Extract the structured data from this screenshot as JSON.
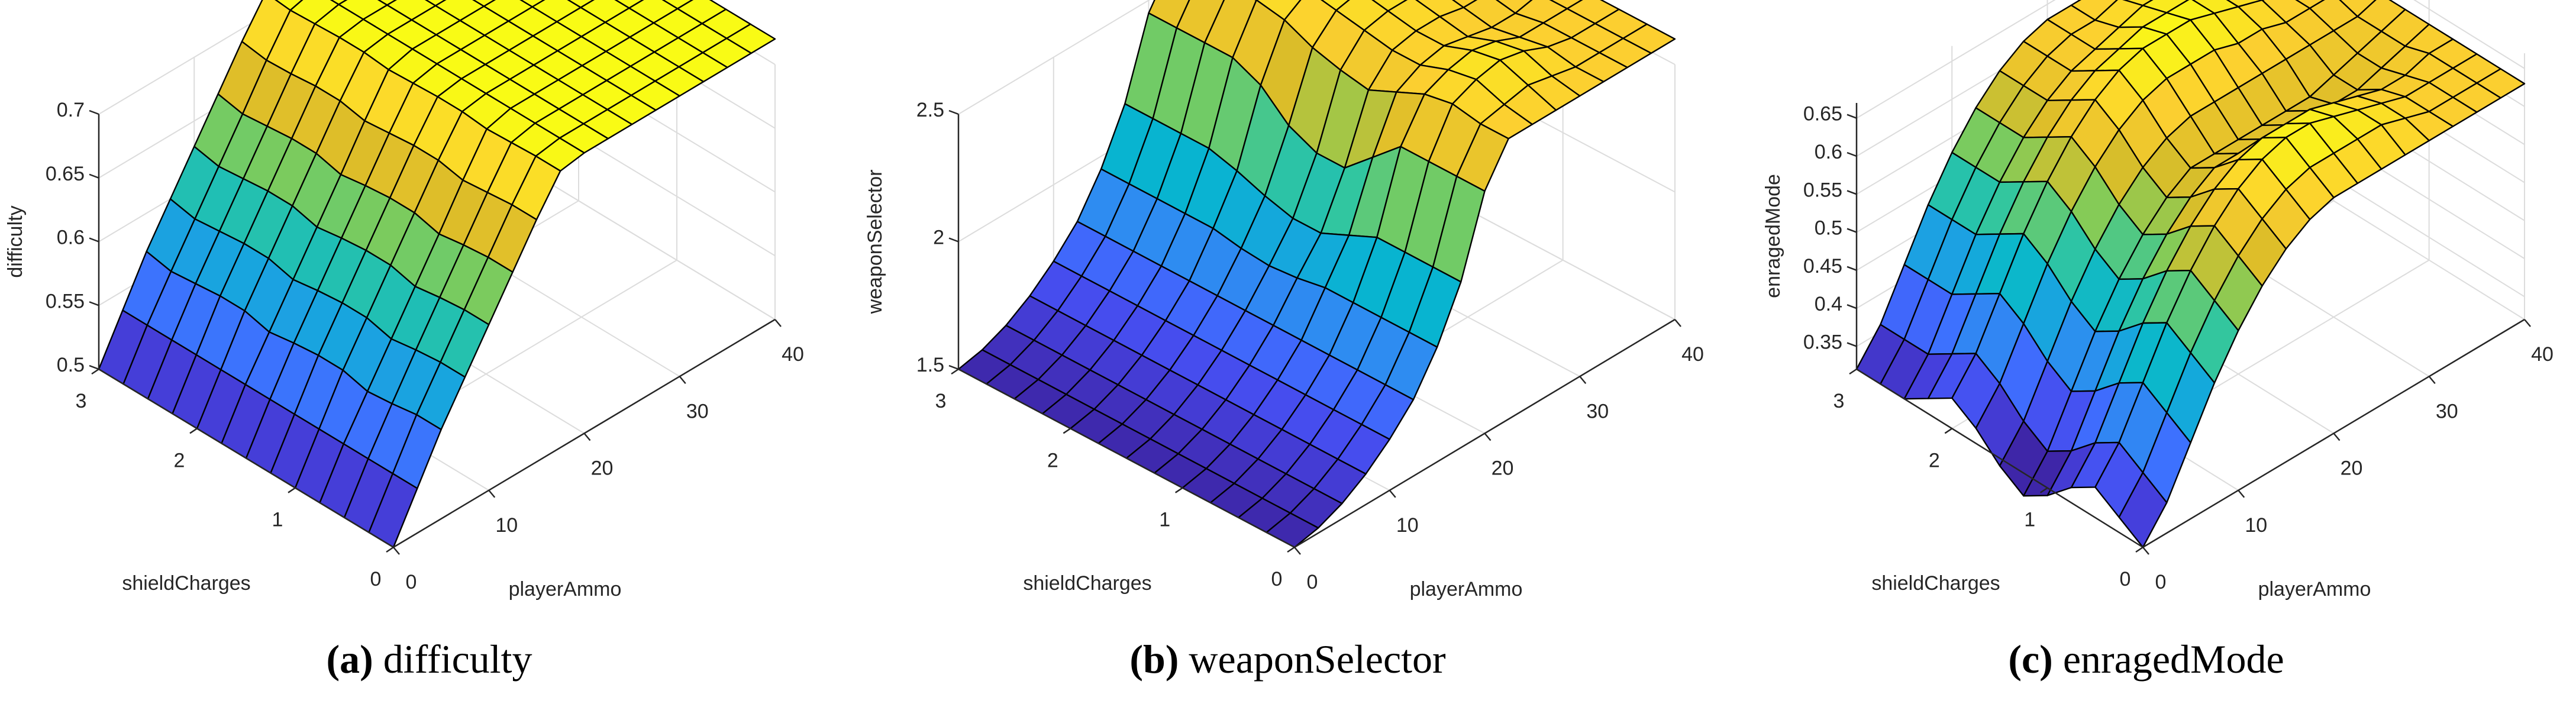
{
  "figure": {
    "panels": [
      {
        "id": "a",
        "letter": "(a)",
        "caption": "difficulty"
      },
      {
        "id": "b",
        "letter": "(b)",
        "caption": "weaponSelector"
      },
      {
        "id": "c",
        "letter": "(c)",
        "caption": "enragedMode"
      }
    ]
  },
  "chart_data": [
    {
      "type": "surface",
      "title": "difficulty",
      "caption": "(a) difficulty",
      "xlabel": "playerAmmo",
      "ylabel": "shieldCharges",
      "zlabel": "difficulty",
      "xlim": [
        0,
        40
      ],
      "ylim": [
        0,
        3
      ],
      "zlim": [
        0.5,
        0.7
      ],
      "xticks": [
        0,
        10,
        20,
        30,
        40
      ],
      "yticks": [
        0,
        1,
        2,
        3
      ],
      "zticks": [
        0.5,
        0.55,
        0.6,
        0.65,
        0.7
      ],
      "ztick_labels": [
        "0.5",
        "0.55",
        "0.6",
        "0.65",
        "0.7"
      ],
      "grid": true,
      "colormap": "parula",
      "x": [
        0,
        2.5,
        5,
        7.5,
        10,
        12.5,
        15,
        17.5,
        20,
        22.5,
        25,
        27.5,
        30,
        32.5,
        35,
        37.5,
        40
      ],
      "y": [
        0,
        0.25,
        0.5,
        0.75,
        1,
        1.25,
        1.5,
        1.75,
        2,
        2.25,
        2.5,
        2.75,
        3
      ],
      "z_description": "rows = shieldCharges (0..3), cols = playerAmmo (0..40)",
      "z": [
        [
          0.5,
          0.535,
          0.57,
          0.6,
          0.63,
          0.66,
          0.69,
          0.717,
          0.72,
          0.72,
          0.72,
          0.72,
          0.72,
          0.72,
          0.72,
          0.72,
          0.72
        ],
        [
          0.5,
          0.535,
          0.57,
          0.6,
          0.63,
          0.66,
          0.69,
          0.717,
          0.72,
          0.72,
          0.72,
          0.72,
          0.72,
          0.72,
          0.72,
          0.72,
          0.72
        ],
        [
          0.5,
          0.535,
          0.567,
          0.598,
          0.628,
          0.658,
          0.688,
          0.716,
          0.72,
          0.72,
          0.72,
          0.72,
          0.72,
          0.72,
          0.72,
          0.72,
          0.72
        ],
        [
          0.5,
          0.535,
          0.565,
          0.595,
          0.625,
          0.655,
          0.686,
          0.715,
          0.72,
          0.72,
          0.72,
          0.72,
          0.72,
          0.72,
          0.72,
          0.72,
          0.72
        ],
        [
          0.5,
          0.535,
          0.57,
          0.6,
          0.63,
          0.66,
          0.69,
          0.717,
          0.72,
          0.72,
          0.72,
          0.72,
          0.72,
          0.72,
          0.72,
          0.72,
          0.72
        ],
        [
          0.5,
          0.535,
          0.57,
          0.6,
          0.63,
          0.66,
          0.69,
          0.717,
          0.72,
          0.72,
          0.72,
          0.72,
          0.72,
          0.72,
          0.72,
          0.72,
          0.72
        ],
        [
          0.5,
          0.535,
          0.568,
          0.598,
          0.628,
          0.658,
          0.688,
          0.716,
          0.72,
          0.72,
          0.72,
          0.72,
          0.72,
          0.72,
          0.72,
          0.72,
          0.72
        ],
        [
          0.5,
          0.535,
          0.565,
          0.595,
          0.625,
          0.655,
          0.686,
          0.715,
          0.72,
          0.72,
          0.72,
          0.72,
          0.72,
          0.72,
          0.72,
          0.72,
          0.72
        ],
        [
          0.5,
          0.535,
          0.57,
          0.6,
          0.63,
          0.66,
          0.69,
          0.717,
          0.72,
          0.72,
          0.72,
          0.72,
          0.72,
          0.72,
          0.72,
          0.72,
          0.72
        ],
        [
          0.5,
          0.535,
          0.57,
          0.6,
          0.63,
          0.66,
          0.69,
          0.717,
          0.72,
          0.72,
          0.72,
          0.72,
          0.72,
          0.72,
          0.72,
          0.72,
          0.72
        ],
        [
          0.5,
          0.535,
          0.568,
          0.598,
          0.628,
          0.658,
          0.688,
          0.716,
          0.72,
          0.72,
          0.72,
          0.72,
          0.72,
          0.72,
          0.72,
          0.72,
          0.72
        ],
        [
          0.5,
          0.535,
          0.566,
          0.596,
          0.626,
          0.656,
          0.687,
          0.715,
          0.72,
          0.72,
          0.72,
          0.72,
          0.72,
          0.72,
          0.72,
          0.72,
          0.72
        ],
        [
          0.5,
          0.535,
          0.57,
          0.6,
          0.63,
          0.66,
          0.69,
          0.717,
          0.72,
          0.72,
          0.72,
          0.72,
          0.72,
          0.72,
          0.72,
          0.72,
          0.72
        ]
      ]
    },
    {
      "type": "surface",
      "title": "weaponSelector",
      "caption": "(b) weaponSelector",
      "xlabel": "playerAmmo",
      "ylabel": "shieldCharges",
      "zlabel": "weaponSelector",
      "xlim": [
        0,
        40
      ],
      "ylim": [
        0,
        3
      ],
      "zlim": [
        1.5,
        2.5
      ],
      "xticks": [
        0,
        10,
        20,
        30,
        40
      ],
      "yticks": [
        0,
        1,
        2,
        3
      ],
      "zticks": [
        1.5,
        2,
        2.5
      ],
      "ztick_labels": [
        "1.5",
        "2",
        "2.5"
      ],
      "grid": true,
      "colormap": "parula",
      "x": [
        0,
        2.5,
        5,
        7.5,
        10,
        12.5,
        15,
        17.5,
        20,
        22.5,
        25,
        27.5,
        30,
        32.5,
        35,
        37.5,
        40
      ],
      "y": [
        0,
        0.25,
        0.5,
        0.75,
        1,
        1.25,
        1.5,
        1.75,
        2,
        2.25,
        2.5,
        2.75,
        3
      ],
      "z_description": "rows = shieldCharges (0..3), cols = playerAmmo (0..40)",
      "z": [
        [
          1.5,
          1.52,
          1.56,
          1.62,
          1.7,
          1.8,
          1.95,
          2.15,
          2.45,
          2.6,
          2.6,
          2.6,
          2.6,
          2.6,
          2.6,
          2.6,
          2.6
        ],
        [
          1.5,
          1.52,
          1.56,
          1.62,
          1.7,
          1.8,
          1.95,
          2.15,
          2.45,
          2.6,
          2.62,
          2.64,
          2.62,
          2.6,
          2.6,
          2.6,
          2.6
        ],
        [
          1.5,
          1.52,
          1.56,
          1.62,
          1.7,
          1.8,
          1.95,
          2.15,
          2.45,
          2.62,
          2.66,
          2.68,
          2.66,
          2.62,
          2.6,
          2.6,
          2.6
        ],
        [
          1.5,
          1.52,
          1.56,
          1.62,
          1.7,
          1.8,
          1.95,
          2.15,
          2.45,
          2.6,
          2.64,
          2.66,
          2.64,
          2.6,
          2.6,
          2.6,
          2.6
        ],
        [
          1.5,
          1.52,
          1.56,
          1.62,
          1.7,
          1.8,
          1.95,
          2.1,
          2.35,
          2.55,
          2.6,
          2.62,
          2.6,
          2.58,
          2.58,
          2.6,
          2.6
        ],
        [
          1.5,
          1.52,
          1.56,
          1.62,
          1.7,
          1.8,
          1.93,
          2.05,
          2.25,
          2.5,
          2.6,
          2.62,
          2.62,
          2.6,
          2.6,
          2.6,
          2.6
        ],
        [
          1.5,
          1.52,
          1.56,
          1.62,
          1.7,
          1.8,
          1.92,
          2.05,
          2.25,
          2.52,
          2.62,
          2.64,
          2.64,
          2.62,
          2.6,
          2.6,
          2.6
        ],
        [
          1.5,
          1.52,
          1.56,
          1.62,
          1.7,
          1.8,
          1.93,
          2.08,
          2.3,
          2.55,
          2.64,
          2.66,
          2.66,
          2.64,
          2.62,
          2.6,
          2.6
        ],
        [
          1.5,
          1.52,
          1.56,
          1.62,
          1.7,
          1.8,
          1.95,
          2.12,
          2.4,
          2.6,
          2.66,
          2.68,
          2.7,
          2.68,
          2.66,
          2.64,
          2.62
        ],
        [
          1.5,
          1.52,
          1.56,
          1.62,
          1.7,
          1.8,
          1.95,
          2.15,
          2.45,
          2.62,
          2.68,
          2.72,
          2.74,
          2.74,
          2.72,
          2.7,
          2.68
        ],
        [
          1.5,
          1.52,
          1.56,
          1.62,
          1.7,
          1.8,
          1.95,
          2.15,
          2.45,
          2.6,
          2.66,
          2.7,
          2.72,
          2.74,
          2.74,
          2.72,
          2.7
        ],
        [
          1.5,
          1.52,
          1.56,
          1.62,
          1.7,
          1.8,
          1.95,
          2.15,
          2.45,
          2.6,
          2.62,
          2.64,
          2.64,
          2.64,
          2.64,
          2.64,
          2.62
        ],
        [
          1.5,
          1.52,
          1.56,
          1.62,
          1.7,
          1.8,
          1.95,
          2.15,
          2.45,
          2.6,
          2.6,
          2.6,
          2.6,
          2.6,
          2.6,
          2.6,
          2.6
        ]
      ]
    },
    {
      "type": "surface",
      "title": "enragedMode",
      "caption": "(c) enragedMode",
      "xlabel": "playerAmmo",
      "ylabel": "shieldCharges",
      "zlabel": "enragedMode",
      "xlim": [
        0,
        40
      ],
      "ylim": [
        0,
        3
      ],
      "zlim": [
        0.32,
        0.67
      ],
      "xticks": [
        0,
        10,
        20,
        30,
        40
      ],
      "yticks": [
        0,
        1,
        2,
        3
      ],
      "zticks": [
        0.35,
        0.4,
        0.45,
        0.5,
        0.55,
        0.6,
        0.65
      ],
      "ztick_labels": [
        "0.35",
        "0.4",
        "0.45",
        "0.5",
        "0.55",
        "0.6",
        "0.65"
      ],
      "grid": true,
      "colormap": "parula",
      "x": [
        0,
        2.5,
        5,
        7.5,
        10,
        12.5,
        15,
        17.5,
        20,
        22.5,
        25,
        27.5,
        30,
        32.5,
        35,
        37.5,
        40
      ],
      "y": [
        0,
        0.25,
        0.5,
        0.75,
        1,
        1.25,
        1.5,
        1.75,
        2,
        2.25,
        2.5,
        2.75,
        3
      ],
      "z_description": "rows = shieldCharges (0..3), cols = playerAmmo (0..40)",
      "z": [
        [
          0.32,
          0.36,
          0.42,
          0.48,
          0.53,
          0.57,
          0.6,
          0.62,
          0.63,
          0.63,
          0.63,
          0.63,
          0.63,
          0.63,
          0.63,
          0.63,
          0.63
        ],
        [
          0.34,
          0.38,
          0.44,
          0.5,
          0.55,
          0.59,
          0.62,
          0.64,
          0.65,
          0.65,
          0.65,
          0.65,
          0.64,
          0.63,
          0.63,
          0.63,
          0.63
        ],
        [
          0.36,
          0.4,
          0.46,
          0.52,
          0.57,
          0.61,
          0.64,
          0.66,
          0.67,
          0.67,
          0.66,
          0.65,
          0.64,
          0.63,
          0.63,
          0.63,
          0.63
        ],
        [
          0.34,
          0.38,
          0.44,
          0.5,
          0.55,
          0.59,
          0.62,
          0.64,
          0.65,
          0.65,
          0.65,
          0.64,
          0.63,
          0.62,
          0.62,
          0.63,
          0.63
        ],
        [
          0.31,
          0.35,
          0.41,
          0.47,
          0.52,
          0.56,
          0.59,
          0.61,
          0.61,
          0.61,
          0.61,
          0.61,
          0.6,
          0.6,
          0.61,
          0.62,
          0.63
        ],
        [
          0.29,
          0.33,
          0.39,
          0.45,
          0.5,
          0.54,
          0.57,
          0.59,
          0.59,
          0.59,
          0.59,
          0.59,
          0.59,
          0.6,
          0.61,
          0.62,
          0.63
        ],
        [
          0.31,
          0.35,
          0.41,
          0.47,
          0.52,
          0.56,
          0.59,
          0.61,
          0.62,
          0.62,
          0.62,
          0.62,
          0.62,
          0.62,
          0.62,
          0.62,
          0.63
        ],
        [
          0.34,
          0.38,
          0.44,
          0.5,
          0.55,
          0.59,
          0.62,
          0.64,
          0.65,
          0.65,
          0.65,
          0.64,
          0.64,
          0.63,
          0.63,
          0.63,
          0.63
        ],
        [
          0.36,
          0.4,
          0.46,
          0.52,
          0.57,
          0.61,
          0.64,
          0.66,
          0.67,
          0.67,
          0.67,
          0.66,
          0.65,
          0.64,
          0.63,
          0.63,
          0.63
        ],
        [
          0.34,
          0.38,
          0.44,
          0.5,
          0.55,
          0.59,
          0.62,
          0.64,
          0.65,
          0.66,
          0.66,
          0.66,
          0.65,
          0.64,
          0.63,
          0.63,
          0.63
        ],
        [
          0.32,
          0.36,
          0.42,
          0.48,
          0.53,
          0.57,
          0.6,
          0.62,
          0.63,
          0.64,
          0.65,
          0.65,
          0.64,
          0.63,
          0.63,
          0.63,
          0.63
        ],
        [
          0.32,
          0.36,
          0.42,
          0.48,
          0.53,
          0.57,
          0.6,
          0.62,
          0.63,
          0.63,
          0.64,
          0.64,
          0.64,
          0.63,
          0.63,
          0.63,
          0.63
        ],
        [
          0.32,
          0.36,
          0.42,
          0.48,
          0.53,
          0.57,
          0.6,
          0.62,
          0.63,
          0.63,
          0.63,
          0.63,
          0.63,
          0.63,
          0.63,
          0.63,
          0.63
        ]
      ]
    }
  ]
}
